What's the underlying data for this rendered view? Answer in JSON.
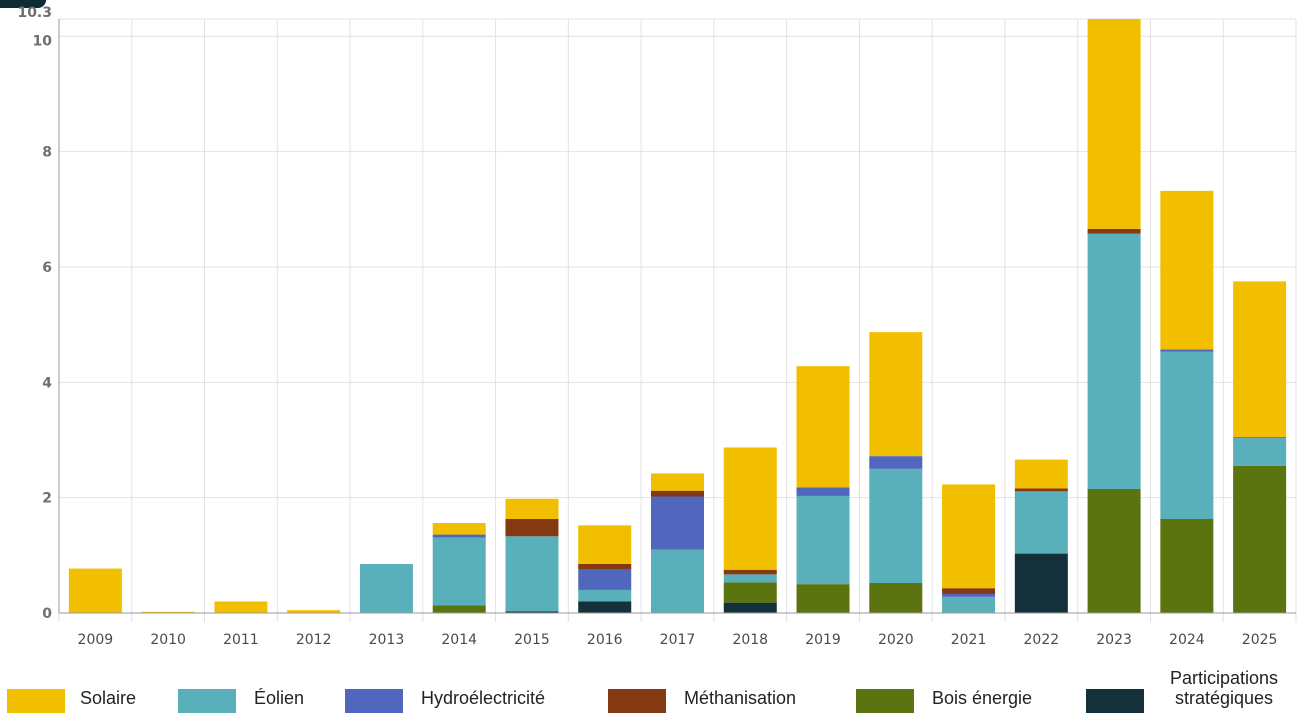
{
  "chart_data": {
    "type": "bar",
    "stacked": true,
    "categories": [
      "2009",
      "2010",
      "2011",
      "2012",
      "2013",
      "2014",
      "2015",
      "2016",
      "2017",
      "2018",
      "2019",
      "2020",
      "2021",
      "2022",
      "2023",
      "2024",
      "2025"
    ],
    "ylim": [
      0,
      10.3
    ],
    "yticks": [
      0,
      2,
      4,
      6,
      8,
      10,
      10.3
    ],
    "ytick_labels": [
      "0",
      "2",
      "4",
      "6",
      "8",
      "10",
      "10.3"
    ],
    "grid": true,
    "legend_position": "bottom",
    "series": [
      {
        "name": "Participations stratégiques",
        "color": "#14303a",
        "values": [
          0,
          0,
          0,
          0,
          0,
          0,
          0.03,
          0.2,
          0,
          0.18,
          0,
          0,
          0,
          1.03,
          0,
          0,
          0
        ]
      },
      {
        "name": "Bois énergie",
        "color": "#5c7410",
        "values": [
          0,
          0,
          0,
          0,
          0,
          0.13,
          0,
          0,
          0,
          0.35,
          0.5,
          0.52,
          0,
          0,
          2.15,
          1.63,
          2.55
        ]
      },
      {
        "name": "Éolien",
        "color": "#5ab0ba",
        "values": [
          0,
          0,
          0,
          0,
          0.85,
          1.18,
          1.3,
          0.2,
          1.1,
          0.14,
          1.53,
          1.98,
          0.28,
          1.08,
          4.43,
          2.9,
          0.48
        ]
      },
      {
        "name": "Hydroélectricité",
        "color": "#5167bd",
        "values": [
          0,
          0,
          0,
          0,
          0,
          0.05,
          0,
          0.35,
          0.92,
          0,
          0.15,
          0.22,
          0.05,
          0,
          0,
          0.04,
          0.02
        ]
      },
      {
        "name": "Méthanisation",
        "color": "#853911",
        "values": [
          0,
          0,
          0,
          0,
          0,
          0,
          0.3,
          0.1,
          0.1,
          0.08,
          0,
          0,
          0.1,
          0.05,
          0.08,
          0,
          0
        ]
      },
      {
        "name": "Solaire",
        "color": "#f2bf00",
        "values": [
          0.77,
          0.02,
          0.2,
          0.05,
          0,
          0.2,
          0.35,
          0.67,
          0.3,
          2.12,
          2.1,
          2.15,
          1.8,
          0.5,
          3.64,
          2.75,
          2.7
        ]
      }
    ]
  },
  "legend": {
    "items": [
      {
        "label": "Solaire",
        "color": "#f2bf00"
      },
      {
        "label": "Éolien",
        "color": "#5ab0ba"
      },
      {
        "label": "Hydroélectricité",
        "color": "#5167bd"
      },
      {
        "label": "Méthanisation",
        "color": "#853911"
      },
      {
        "label": "Bois énergie",
        "color": "#5c7410"
      },
      {
        "label": "Participations stratégiques",
        "color": "#14303a"
      }
    ]
  }
}
